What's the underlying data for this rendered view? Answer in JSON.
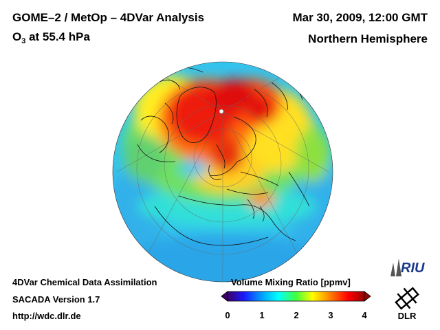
{
  "header": {
    "title_left": "GOME–2 / MetOp – 4DVar Analysis",
    "species_prefix": "O",
    "species_sub": "3",
    "species_suffix": " at 55.4 hPa",
    "date_time": "Mar 30, 2009, 12:00 GMT",
    "region": "Northern Hemisphere"
  },
  "footer": {
    "line1": "4DVar Chemical Data Assimilation",
    "line2": "SACADA Version 1.7",
    "line3": "http://wdc.dlr.de"
  },
  "colorbar": {
    "title": "Volume Mixing Ratio [ppmv]",
    "ticks": [
      "0",
      "1",
      "2",
      "3",
      "4"
    ],
    "range": [
      0,
      4
    ],
    "colors": [
      "#3a0066",
      "#1a1aff",
      "#00a0ff",
      "#00ffff",
      "#40ff40",
      "#ffff00",
      "#ff8000",
      "#ff0000",
      "#990000"
    ]
  },
  "logos": {
    "riu_text": "RIU",
    "dlr_text": "DLR"
  },
  "map": {
    "projection": "orthographic",
    "center": "North Pole"
  }
}
